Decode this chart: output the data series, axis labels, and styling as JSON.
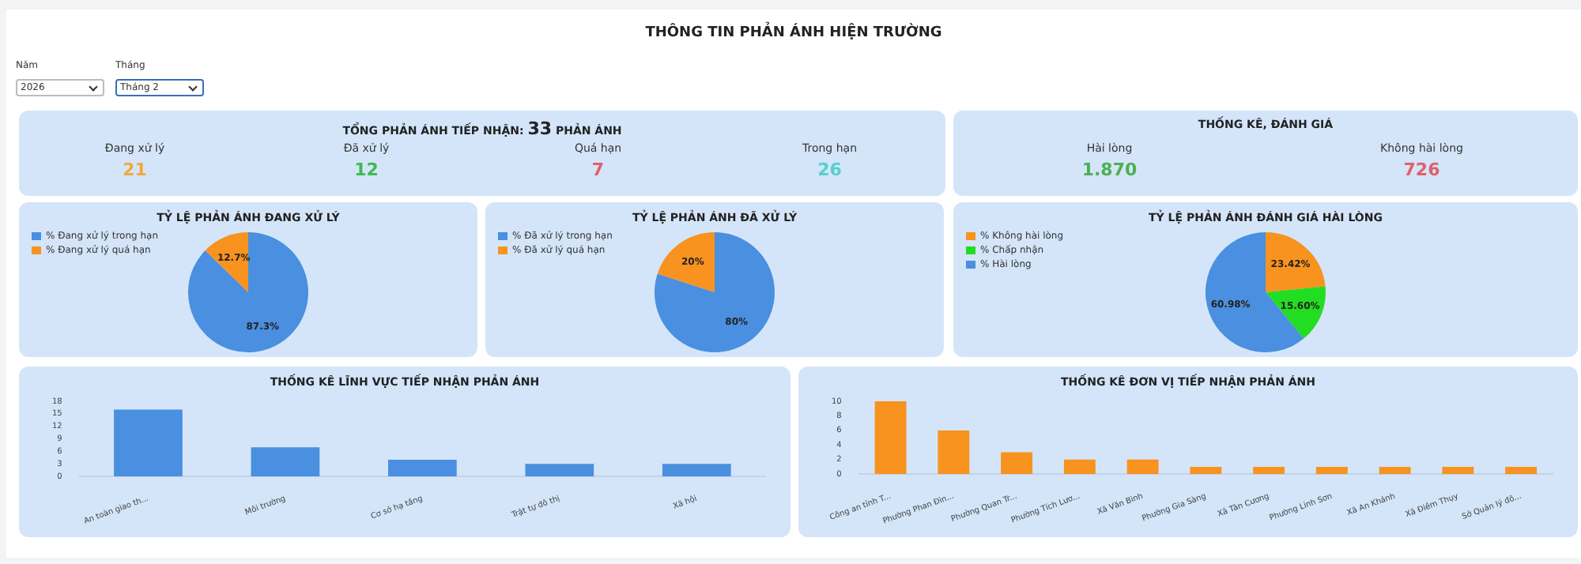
{
  "chart_data": [
    {
      "type": "other",
      "title": "THÔNG TIN PHẢN ÁNH HIỆN TRƯỜNG",
      "annotations": [
        "Năm",
        "2026",
        "Tháng",
        "Tháng 2"
      ]
    },
    {
      "type": "other",
      "title": "TỔNG PHẢN ÁNH TIẾP NHẬN: 33 PHẢN ÁNH",
      "annotations": [
        "Đang xử lý",
        "21",
        "Đã xử lý",
        "12",
        "Quá hạn",
        "7",
        "Trong hạn",
        "26"
      ]
    },
    {
      "type": "other",
      "title": "THỐNG KÊ, ĐÁNH GIÁ",
      "annotations": [
        "Hài lòng",
        "1.870",
        "Không hài lòng",
        "726"
      ]
    },
    {
      "type": "pie",
      "title": "TỶ LỆ PHẢN ÁNH ĐANG XỬ LÝ",
      "categories": [
        "% Đang xử lý trong hạn",
        "% Đang xử lý quá hạn"
      ],
      "values": [
        87.3,
        12.7
      ],
      "value_labels": [
        "87.3%",
        "12.7%"
      ],
      "colors": [
        "#4a8fe0",
        "#f7931e"
      ],
      "legend": "top left"
    },
    {
      "type": "pie",
      "title": "TỶ LỆ PHẢN ÁNH ĐÃ XỬ LÝ",
      "categories": [
        "% Đã xử lý trong hạn",
        "% Đã xử lý quá hạn"
      ],
      "values": [
        80,
        20
      ],
      "value_labels": [
        "80%",
        "20%"
      ],
      "colors": [
        "#4a8fe0",
        "#f7931e"
      ],
      "legend": "top left"
    },
    {
      "type": "pie",
      "title": "TỶ LỆ PHẢN ÁNH ĐÁNH GIÁ HÀI LÒNG",
      "categories": [
        "% Không hài lòng",
        "% Chấp nhận",
        "% Hài lòng"
      ],
      "values": [
        23.42,
        15.6,
        60.98
      ],
      "value_labels": [
        "23.42%",
        "15.60%",
        "60.98%"
      ],
      "colors": [
        "#f7931e",
        "#22dd22",
        "#4a8fe0"
      ],
      "legend": "top left"
    },
    {
      "type": "bar",
      "title": "THỐNG KÊ LĨNH VỰC TIẾP NHẬN PHẢN ÁNH",
      "categories": [
        "An toàn giao th...",
        "Môi trường",
        "Cơ sở hạ tầng",
        "Trật tự đô thị",
        "Xã hội"
      ],
      "values": [
        16,
        7,
        4,
        3,
        3
      ],
      "color": "#4a8fe0",
      "ylim": [
        0,
        18
      ],
      "yticks": [
        0,
        3,
        6,
        9,
        12,
        15,
        18
      ]
    },
    {
      "type": "bar",
      "title": "THỐNG KÊ ĐƠN VỊ TIẾP NHẬN PHẢN ÁNH",
      "categories": [
        "Công an tỉnh T...",
        "Phường Phan Đìn...",
        "Phường Quan Tr...",
        "Phường Tích Lươ...",
        "Xã Văn Bình",
        "Phường Gia Sàng",
        "Xã Tân Cương",
        "Phường Linh Sơn",
        "Xã An Khánh",
        "Xã Điềm Thụy",
        "Sở Quản lý đô..."
      ],
      "values": [
        10,
        6,
        3,
        2,
        2,
        1,
        1,
        1,
        1,
        1,
        1
      ],
      "color": "#f7931e",
      "ylim": [
        0,
        10
      ],
      "yticks": [
        0,
        2,
        4,
        6,
        8,
        10
      ]
    }
  ]
}
